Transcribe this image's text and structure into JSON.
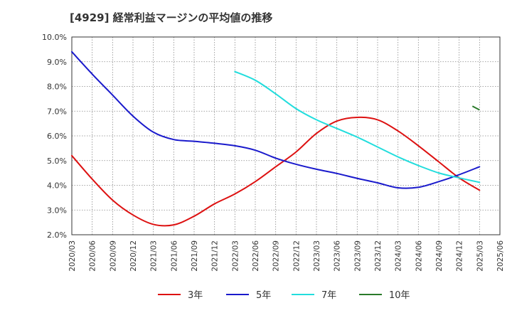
{
  "chart_data": {
    "type": "line",
    "title": "[4929]  経常利益マージンの平均値の推移",
    "xlabel": "",
    "ylabel": "",
    "ylim": [
      2.0,
      10.0
    ],
    "yticks": [
      "2.0%",
      "3.0%",
      "4.0%",
      "5.0%",
      "6.0%",
      "7.0%",
      "8.0%",
      "9.0%",
      "10.0%"
    ],
    "categories": [
      "2020/03",
      "2020/06",
      "2020/09",
      "2020/12",
      "2021/03",
      "2021/06",
      "2021/09",
      "2021/12",
      "2022/03",
      "2022/06",
      "2022/09",
      "2022/12",
      "2023/03",
      "2023/06",
      "2023/09",
      "2023/12",
      "2024/03",
      "2024/06",
      "2024/09",
      "2024/12",
      "2025/03",
      "2025/06"
    ],
    "grid": true,
    "legend_position": "bottom",
    "series": [
      {
        "name": "3年",
        "color": "#dd1111",
        "values": [
          5.2,
          4.25,
          3.4,
          2.8,
          2.42,
          2.4,
          2.75,
          3.25,
          3.65,
          4.15,
          4.75,
          5.35,
          6.1,
          6.6,
          6.75,
          6.65,
          6.2,
          5.6,
          4.95,
          4.3,
          3.8,
          null
        ]
      },
      {
        "name": "5年",
        "color": "#1a1acc",
        "values": [
          9.4,
          8.5,
          7.65,
          6.8,
          6.15,
          5.85,
          5.78,
          5.7,
          5.6,
          5.42,
          5.1,
          4.85,
          4.65,
          4.48,
          4.28,
          4.1,
          3.9,
          3.92,
          4.15,
          4.43,
          4.75,
          null
        ]
      },
      {
        "name": "7年",
        "color": "#22dddd",
        "values": [
          null,
          null,
          null,
          null,
          null,
          null,
          null,
          null,
          8.6,
          8.25,
          7.7,
          7.1,
          6.65,
          6.3,
          5.95,
          5.55,
          5.15,
          4.8,
          4.5,
          4.3,
          4.12,
          null
        ]
      },
      {
        "name": "10年",
        "color": "#2a7a2a",
        "values": [
          null,
          null,
          null,
          null,
          null,
          null,
          null,
          null,
          null,
          null,
          null,
          null,
          null,
          null,
          null,
          null,
          null,
          null,
          null,
          null,
          7.18,
          null
        ],
        "segment_start": 7.2,
        "segment_end": 7.05
      }
    ]
  }
}
